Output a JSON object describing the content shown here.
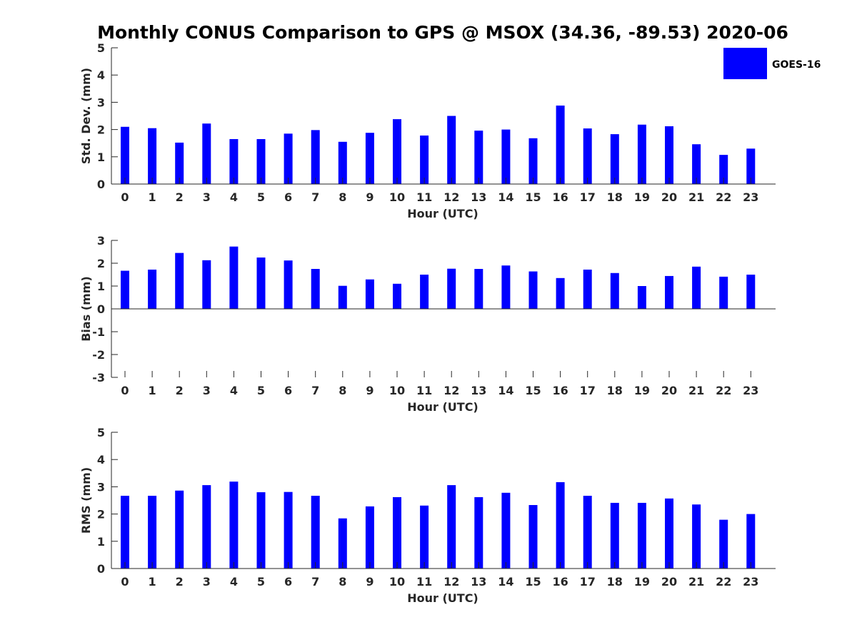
{
  "figure": {
    "title": "Monthly CONUS Comparison to GPS @ MSOX (34.36, -89.53) 2020-06",
    "bar_color": "#0000ff",
    "legend": {
      "label": "GOES-16",
      "color": "#0000ff",
      "placement": "top-right"
    }
  },
  "chart_data": [
    {
      "type": "bar",
      "xlabel": "Hour (UTC)",
      "ylabel": "Std. Dev. (mm)",
      "categories": [
        "0",
        "1",
        "2",
        "3",
        "4",
        "5",
        "6",
        "7",
        "8",
        "9",
        "10",
        "11",
        "12",
        "13",
        "14",
        "15",
        "16",
        "17",
        "18",
        "19",
        "20",
        "21",
        "22",
        "23"
      ],
      "series": [
        {
          "name": "GOES-16",
          "values": [
            2.1,
            2.05,
            1.52,
            2.22,
            1.65,
            1.65,
            1.85,
            1.98,
            1.55,
            1.88,
            2.38,
            1.78,
            2.5,
            1.96,
            2.0,
            1.68,
            2.88,
            2.04,
            1.83,
            2.18,
            2.12,
            1.46,
            1.07,
            1.3
          ]
        }
      ],
      "ylim": [
        0,
        5
      ],
      "yticks": [
        "0",
        "1",
        "2",
        "3",
        "4",
        "5"
      ],
      "grid": false
    },
    {
      "type": "bar",
      "xlabel": "Hour (UTC)",
      "ylabel": "Bias (mm)",
      "categories": [
        "0",
        "1",
        "2",
        "3",
        "4",
        "5",
        "6",
        "7",
        "8",
        "9",
        "10",
        "11",
        "12",
        "13",
        "14",
        "15",
        "16",
        "17",
        "18",
        "19",
        "20",
        "21",
        "22",
        "23"
      ],
      "series": [
        {
          "name": "GOES-16",
          "values": [
            1.67,
            1.72,
            2.45,
            2.13,
            2.73,
            2.25,
            2.12,
            1.75,
            1.01,
            1.29,
            1.1,
            1.5,
            1.76,
            1.75,
            1.9,
            1.64,
            1.35,
            1.72,
            1.57,
            1.0,
            1.44,
            1.85,
            1.41,
            1.5
          ]
        }
      ],
      "ylim": [
        -3,
        3
      ],
      "yticks": [
        "-3",
        "-2",
        "-1",
        "0",
        "1",
        "2",
        "3"
      ],
      "grid": false
    },
    {
      "type": "bar",
      "xlabel": "Hour (UTC)",
      "ylabel": "RMS (mm)",
      "categories": [
        "0",
        "1",
        "2",
        "3",
        "4",
        "5",
        "6",
        "7",
        "8",
        "9",
        "10",
        "11",
        "12",
        "13",
        "14",
        "15",
        "16",
        "17",
        "18",
        "19",
        "20",
        "21",
        "22",
        "23"
      ],
      "series": [
        {
          "name": "GOES-16",
          "values": [
            2.67,
            2.67,
            2.86,
            3.06,
            3.19,
            2.8,
            2.81,
            2.67,
            1.84,
            2.28,
            2.62,
            2.31,
            3.06,
            2.62,
            2.78,
            2.33,
            3.17,
            2.67,
            2.41,
            2.41,
            2.57,
            2.35,
            1.79,
            2.0
          ]
        }
      ],
      "ylim": [
        0,
        5
      ],
      "yticks": [
        "0",
        "1",
        "2",
        "3",
        "4",
        "5"
      ],
      "grid": false
    }
  ]
}
